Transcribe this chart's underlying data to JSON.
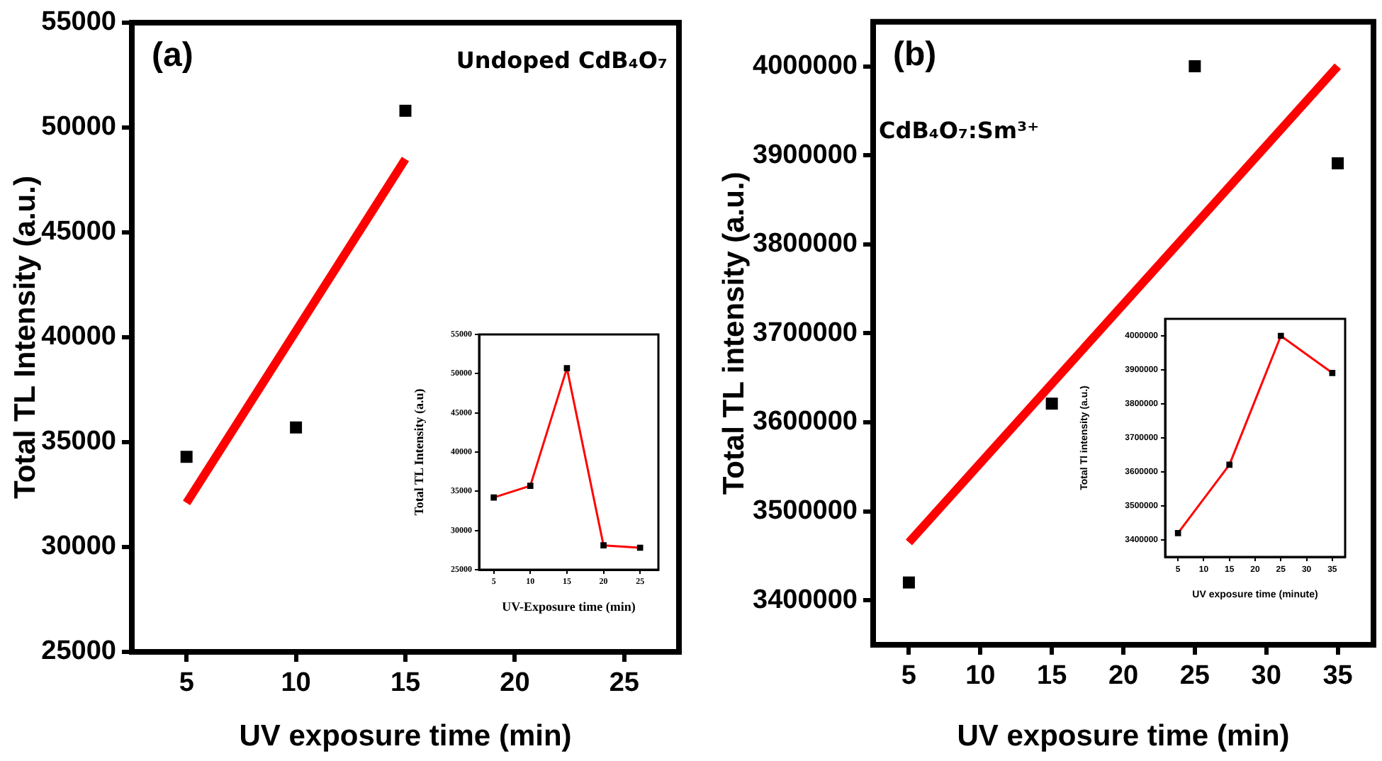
{
  "chart_data": [
    {
      "type": "scatter",
      "title": "(a)",
      "xlabel": "UV exposure time (min)",
      "ylabel": "Total TL Intensity (a.u.)",
      "annotations": [
        "Undoped CdB₄O₇"
      ],
      "xlim": [
        2.5,
        27.5
      ],
      "xticks": [
        5,
        10,
        15,
        20,
        25
      ],
      "ylim": [
        25000,
        55000
      ],
      "yticks": [
        25000,
        30000,
        35000,
        40000,
        45000,
        50000,
        55000
      ],
      "series": [
        {
          "color": "#000000",
          "marker": "square",
          "x": [
            5,
            10,
            15
          ],
          "values": [
            34300,
            35700,
            50800
          ]
        },
        {
          "type": "line",
          "color": "#ff0000",
          "marker": "none",
          "x": [
            5,
            15
          ],
          "values": [
            32100,
            48500
          ]
        }
      ]
    },
    {
      "type": "line",
      "xlabel": "UV-Exposure time (min)",
      "ylabel": "Total TL Intensity (a.u)",
      "xlim": [
        3,
        27.5
      ],
      "xticks": [
        5,
        10,
        15,
        20,
        25
      ],
      "ylim": [
        25000,
        55000
      ],
      "yticks": [
        25000,
        30000,
        35000,
        40000,
        45000,
        50000,
        55000
      ],
      "series": [
        {
          "color": "#ff0000",
          "colors": [
            "#000000",
            "#000000",
            "#000000",
            "#000000",
            "#000000"
          ],
          "marker": "square",
          "x": [
            5,
            10,
            15,
            20,
            25
          ],
          "values": [
            34200,
            35700,
            50700,
            28100,
            27800
          ]
        }
      ]
    },
    {
      "type": "scatter",
      "title": "(b)",
      "xlabel": "UV exposure time (min)",
      "ylabel": "Total TL intensity (a.u.)",
      "annotations": [
        "CdB₄O₇:Sm³⁺"
      ],
      "xlim": [
        2.5,
        37.5
      ],
      "xticks": [
        5,
        10,
        15,
        20,
        25,
        30,
        35
      ],
      "ylim": [
        3350000,
        4050000
      ],
      "yticks": [
        3400000,
        3500000,
        3600000,
        3700000,
        3800000,
        3900000,
        4000000
      ],
      "series": [
        {
          "color": "#000000",
          "marker": "square",
          "x": [
            5,
            15,
            25,
            35
          ],
          "values": [
            3420000,
            3621000,
            4000000,
            3891000
          ]
        },
        {
          "type": "line",
          "color": "#ff0000",
          "marker": "none",
          "x": [
            5,
            35
          ],
          "values": [
            3465000,
            4000000
          ]
        }
      ]
    },
    {
      "type": "line",
      "xlabel": "UV exposure time (minute)",
      "ylabel": "Total Tl intensity (a.u.)",
      "xlim": [
        2.5,
        37.5
      ],
      "xticks": [
        5,
        10,
        15,
        20,
        25,
        30,
        35
      ],
      "ylim": [
        3350000,
        4050000
      ],
      "yticks": [
        3400000,
        3500000,
        3600000,
        3700000,
        3800000,
        3900000,
        4000000
      ],
      "series": [
        {
          "color": "#ff0000",
          "colors": [
            "#000000",
            "#000000",
            "#000000",
            "#000000"
          ],
          "marker": "square",
          "x": [
            5,
            15,
            25,
            35
          ],
          "values": [
            3420000,
            3621000,
            4000000,
            3891000
          ]
        }
      ]
    }
  ]
}
